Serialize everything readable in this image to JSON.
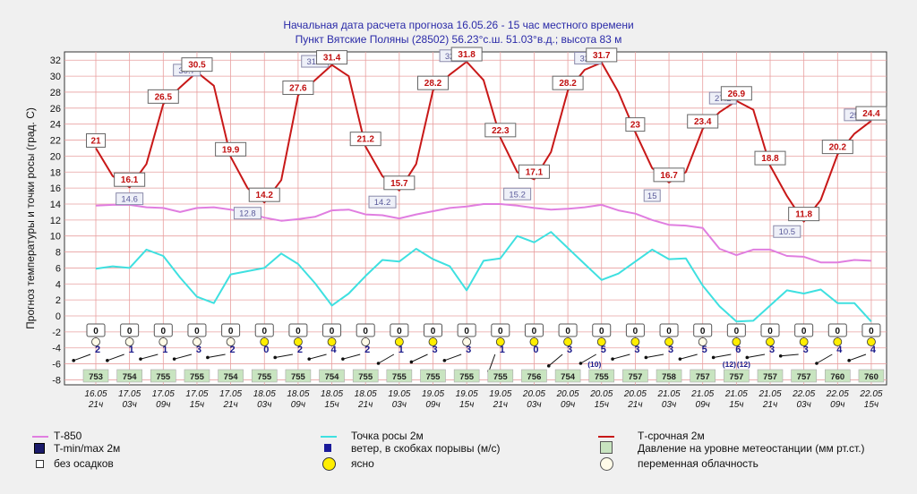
{
  "header": {
    "line1": "Начальная дата расчета прогноза 16.05.26 - 15 час местного времени",
    "line2": "Пункт  Вятские Поляны (28502)   56.23°с.ш.  51.03°в.д.; высота 83 м"
  },
  "chart_data": {
    "type": "line",
    "ylabel": "Прогноз температуры и точки росы (град. С)",
    "ylim": [
      -8,
      33
    ],
    "yticks": [
      -8,
      -6,
      -4,
      -2,
      0,
      2,
      4,
      6,
      8,
      10,
      12,
      14,
      16,
      18,
      20,
      22,
      24,
      26,
      28,
      30,
      32
    ],
    "grid": true,
    "x_dates": [
      "16.05",
      "17.05",
      "17.05",
      "17.05",
      "17.05",
      "18.05",
      "18.05",
      "18.05",
      "18.05",
      "19.05",
      "19.05",
      "19.05",
      "19.05",
      "20.05",
      "20.05",
      "20.05",
      "20.05",
      "21.05",
      "21.05",
      "21.05",
      "21.05",
      "22.05",
      "22.05",
      "22.05"
    ],
    "x_hours": [
      "21ч",
      "03ч",
      "09ч",
      "15ч",
      "21ч",
      "03ч",
      "09ч",
      "15ч",
      "21ч",
      "03ч",
      "09ч",
      "15ч",
      "21ч",
      "03ч",
      "09ч",
      "15ч",
      "21ч",
      "03ч",
      "09ч",
      "15ч",
      "21ч",
      "03ч",
      "09ч",
      "15ч"
    ],
    "series": [
      {
        "name": "T-850",
        "color": "#e07ee0",
        "x": [
          0,
          0.5,
          1,
          1.5,
          2,
          2.5,
          3,
          3.5,
          4,
          4.5,
          5,
          5.5,
          6,
          6.5,
          7,
          7.5,
          8,
          8.5,
          9,
          9.5,
          10,
          10.5,
          11,
          11.5,
          12,
          12.5,
          13,
          13.5,
          14,
          14.5,
          15,
          15.5,
          16,
          16.5,
          17,
          17.5,
          18,
          18.5,
          19,
          19.5,
          20,
          20.5,
          21,
          21.5,
          22,
          22.5,
          23
        ],
        "y": [
          13.8,
          13.9,
          13.9,
          13.6,
          13.5,
          13.0,
          13.5,
          13.6,
          13.3,
          12.9,
          12.3,
          11.9,
          12.1,
          12.4,
          13.2,
          13.3,
          12.7,
          12.6,
          12.2,
          12.7,
          13.1,
          13.5,
          13.7,
          14.0,
          14.0,
          13.8,
          13.5,
          13.3,
          13.4,
          13.6,
          13.9,
          13.2,
          12.8,
          12.0,
          11.4,
          11.3,
          11.0,
          8.4,
          7.6,
          8.3,
          8.3,
          7.5,
          7.4,
          6.7,
          6.7,
          7.0,
          6.9
        ]
      },
      {
        "name": "Точка росы 2м",
        "color": "#3fe0e0",
        "x": [
          0,
          0.5,
          1,
          1.5,
          2,
          2.5,
          3,
          3.5,
          4,
          4.5,
          5,
          5.5,
          6,
          6.5,
          7,
          7.5,
          8,
          8.5,
          9,
          9.5,
          10,
          10.5,
          11,
          11.5,
          12,
          12.5,
          13,
          13.5,
          14,
          14.5,
          15,
          15.5,
          16,
          16.5,
          17,
          17.5,
          18,
          18.5,
          19,
          19.5,
          20,
          20.5,
          21,
          21.5,
          22,
          22.5,
          23
        ],
        "y": [
          5.9,
          6.2,
          6.0,
          8.3,
          7.5,
          4.8,
          2.4,
          1.6,
          5.2,
          5.6,
          6.0,
          7.8,
          6.5,
          4.1,
          1.3,
          2.8,
          5.0,
          7.0,
          6.8,
          8.4,
          7.1,
          6.2,
          3.2,
          6.9,
          7.2,
          10.0,
          9.2,
          10.5,
          8.5,
          6.5,
          4.5,
          5.3,
          6.8,
          8.3,
          7.1,
          7.2,
          3.8,
          1.2,
          -0.7,
          -0.6,
          1.3,
          3.2,
          2.8,
          3.3,
          1.6,
          1.6,
          -0.7
        ]
      },
      {
        "name": "Т-срочная 2м",
        "color": "#c81818",
        "x": [
          0,
          0.5,
          1,
          1.5,
          2,
          2.5,
          3,
          3.5,
          4,
          4.5,
          5,
          5.5,
          6,
          6.5,
          7,
          7.5,
          8,
          8.5,
          9,
          9.5,
          10,
          10.5,
          11,
          11.5,
          12,
          12.5,
          13,
          13.5,
          14,
          14.5,
          15,
          15.5,
          16,
          16.5,
          17,
          17.5,
          18,
          18.5,
          19,
          19.5,
          20,
          20.5,
          21,
          21.5,
          22,
          22.5,
          23
        ],
        "y": [
          21,
          17.5,
          16.1,
          19.0,
          26.5,
          28.6,
          30.5,
          28.8,
          19.9,
          16.0,
          14.2,
          17.0,
          27.6,
          29.5,
          31.4,
          30.0,
          21.2,
          17.5,
          15.7,
          19.0,
          28.2,
          30.2,
          31.8,
          29.5,
          22.3,
          18.0,
          17.1,
          20.5,
          28.2,
          30.8,
          31.7,
          28.0,
          23.0,
          18.5,
          16.7,
          18.0,
          23.4,
          25.5,
          26.9,
          25.8,
          18.8,
          15.0,
          11.8,
          14.5,
          20.2,
          22.8,
          24.4
        ]
      }
    ],
    "temp_labels": [
      {
        "x": 0,
        "v": "21"
      },
      {
        "x": 1,
        "v": "16.1"
      },
      {
        "x": 2,
        "v": "26.5"
      },
      {
        "x": 3,
        "v": "30.5"
      },
      {
        "x": 4,
        "v": "19.9"
      },
      {
        "x": 5,
        "v": "14.2"
      },
      {
        "x": 6,
        "v": "27.6"
      },
      {
        "x": 7,
        "v": "31.4"
      },
      {
        "x": 8,
        "v": "21.2"
      },
      {
        "x": 9,
        "v": "15.7"
      },
      {
        "x": 10,
        "v": "28.2"
      },
      {
        "x": 11,
        "v": "31.8"
      },
      {
        "x": 12,
        "v": "22.3"
      },
      {
        "x": 13,
        "v": "17.1"
      },
      {
        "x": 14,
        "v": "28.2"
      },
      {
        "x": 15,
        "v": "31.7"
      },
      {
        "x": 16,
        "v": "23"
      },
      {
        "x": 17,
        "v": "16.7"
      },
      {
        "x": 18,
        "v": "23.4"
      },
      {
        "x": 19,
        "v": "26.9"
      },
      {
        "x": 20,
        "v": "18.8"
      },
      {
        "x": 21,
        "v": "11.8"
      },
      {
        "x": 22,
        "v": "20.2"
      },
      {
        "x": 23,
        "v": "24.4"
      }
    ],
    "minmax_labels": [
      {
        "x": 1,
        "v": "14.6",
        "y": 14.6
      },
      {
        "x": 2.7,
        "v": "30.7",
        "y": 30.7
      },
      {
        "x": 4.5,
        "v": "12.8",
        "y": 12.8
      },
      {
        "x": 6.5,
        "v": "31.8",
        "y": 31.8
      },
      {
        "x": 8.5,
        "v": "14.2",
        "y": 14.2
      },
      {
        "x": 10.6,
        "v": "32.5",
        "y": 32.5
      },
      {
        "x": 12.5,
        "v": "15.2",
        "y": 15.2
      },
      {
        "x": 14.6,
        "v": "32.2",
        "y": 32.2
      },
      {
        "x": 16.5,
        "v": "15",
        "y": 15
      },
      {
        "x": 18.6,
        "v": "27.2",
        "y": 27.2
      },
      {
        "x": 20.5,
        "v": "10.5",
        "y": 10.5
      },
      {
        "x": 22.6,
        "v": "25.1",
        "y": 25.1
      }
    ],
    "precip": [
      "0",
      "0",
      "0",
      "0",
      "0",
      "0",
      "0",
      "0",
      "0",
      "0",
      "0",
      "0",
      "0",
      "0",
      "0",
      "0",
      "0",
      "0",
      "0",
      "0",
      "0",
      "0",
      "0",
      "0"
    ],
    "weather": [
      "переменная облачность",
      "переменная облачность",
      "переменная облачность",
      "переменная облачность",
      "переменная облачность",
      "ясно",
      "ясно",
      "ясно",
      "переменная облачность",
      "ясно",
      "ясно",
      "переменная облачность",
      "ясно",
      "ясно",
      "ясно",
      "ясно",
      "ясно",
      "ясно",
      "переменная облачность",
      "ясно",
      "ясно",
      "ясно",
      "ясно",
      "ясно"
    ],
    "wind_speed": [
      "2",
      "1",
      "1",
      "3",
      "2",
      "0",
      "2",
      "4",
      "2",
      "1",
      "3",
      "3",
      "1",
      "0",
      "3",
      "5",
      "3",
      "3",
      "5",
      "6",
      "3",
      "3",
      "4",
      "4"
    ],
    "wind_gusts": [
      "",
      "",
      "",
      "",
      "",
      "",
      "",
      "",
      "",
      "",
      "",
      "",
      "",
      "",
      "",
      "(10)",
      "",
      "",
      "",
      "(12)",
      "",
      "",
      "",
      ""
    ],
    "wind_gust2": [
      "",
      "",
      "",
      "",
      "",
      "",
      "",
      "",
      "",
      "",
      "",
      "",
      "",
      "",
      "",
      "",
      "",
      "",
      "",
      "(12)",
      "",
      "",
      "",
      ""
    ],
    "wind_angle_deg": [
      160,
      160,
      165,
      165,
      170,
      0,
      170,
      165,
      165,
      150,
      155,
      160,
      110,
      0,
      140,
      150,
      165,
      170,
      165,
      170,
      170,
      175,
      150,
      160
    ],
    "pressure": [
      "753",
      "754",
      "755",
      "755",
      "754",
      "755",
      "755",
      "754",
      "755",
      "755",
      "755",
      "755",
      "755",
      "756",
      "754",
      "755",
      "757",
      "758",
      "757",
      "757",
      "757",
      "757",
      "760",
      "760"
    ]
  },
  "legend": {
    "t850": "Т-850",
    "dew": "Точка росы 2м",
    "t2m": "Т-срочная 2м",
    "tminmax": "T-min/max 2м",
    "wind": "ветер, в скобках порывы (м/с)",
    "pressure": "Давление на уровне метеостанции (мм рт.ст.)",
    "noprecip": "без осадков",
    "clear": "ясно",
    "variable": "переменная облачность"
  },
  "colors": {
    "grid": "#e8a0a0",
    "pressure_box": "#c8e4c0",
    "t850": "#e07ee0",
    "dew": "#3fe0e0",
    "t2m": "#c81818",
    "wind": "#1a1a8a",
    "sun": "#ffee00"
  }
}
